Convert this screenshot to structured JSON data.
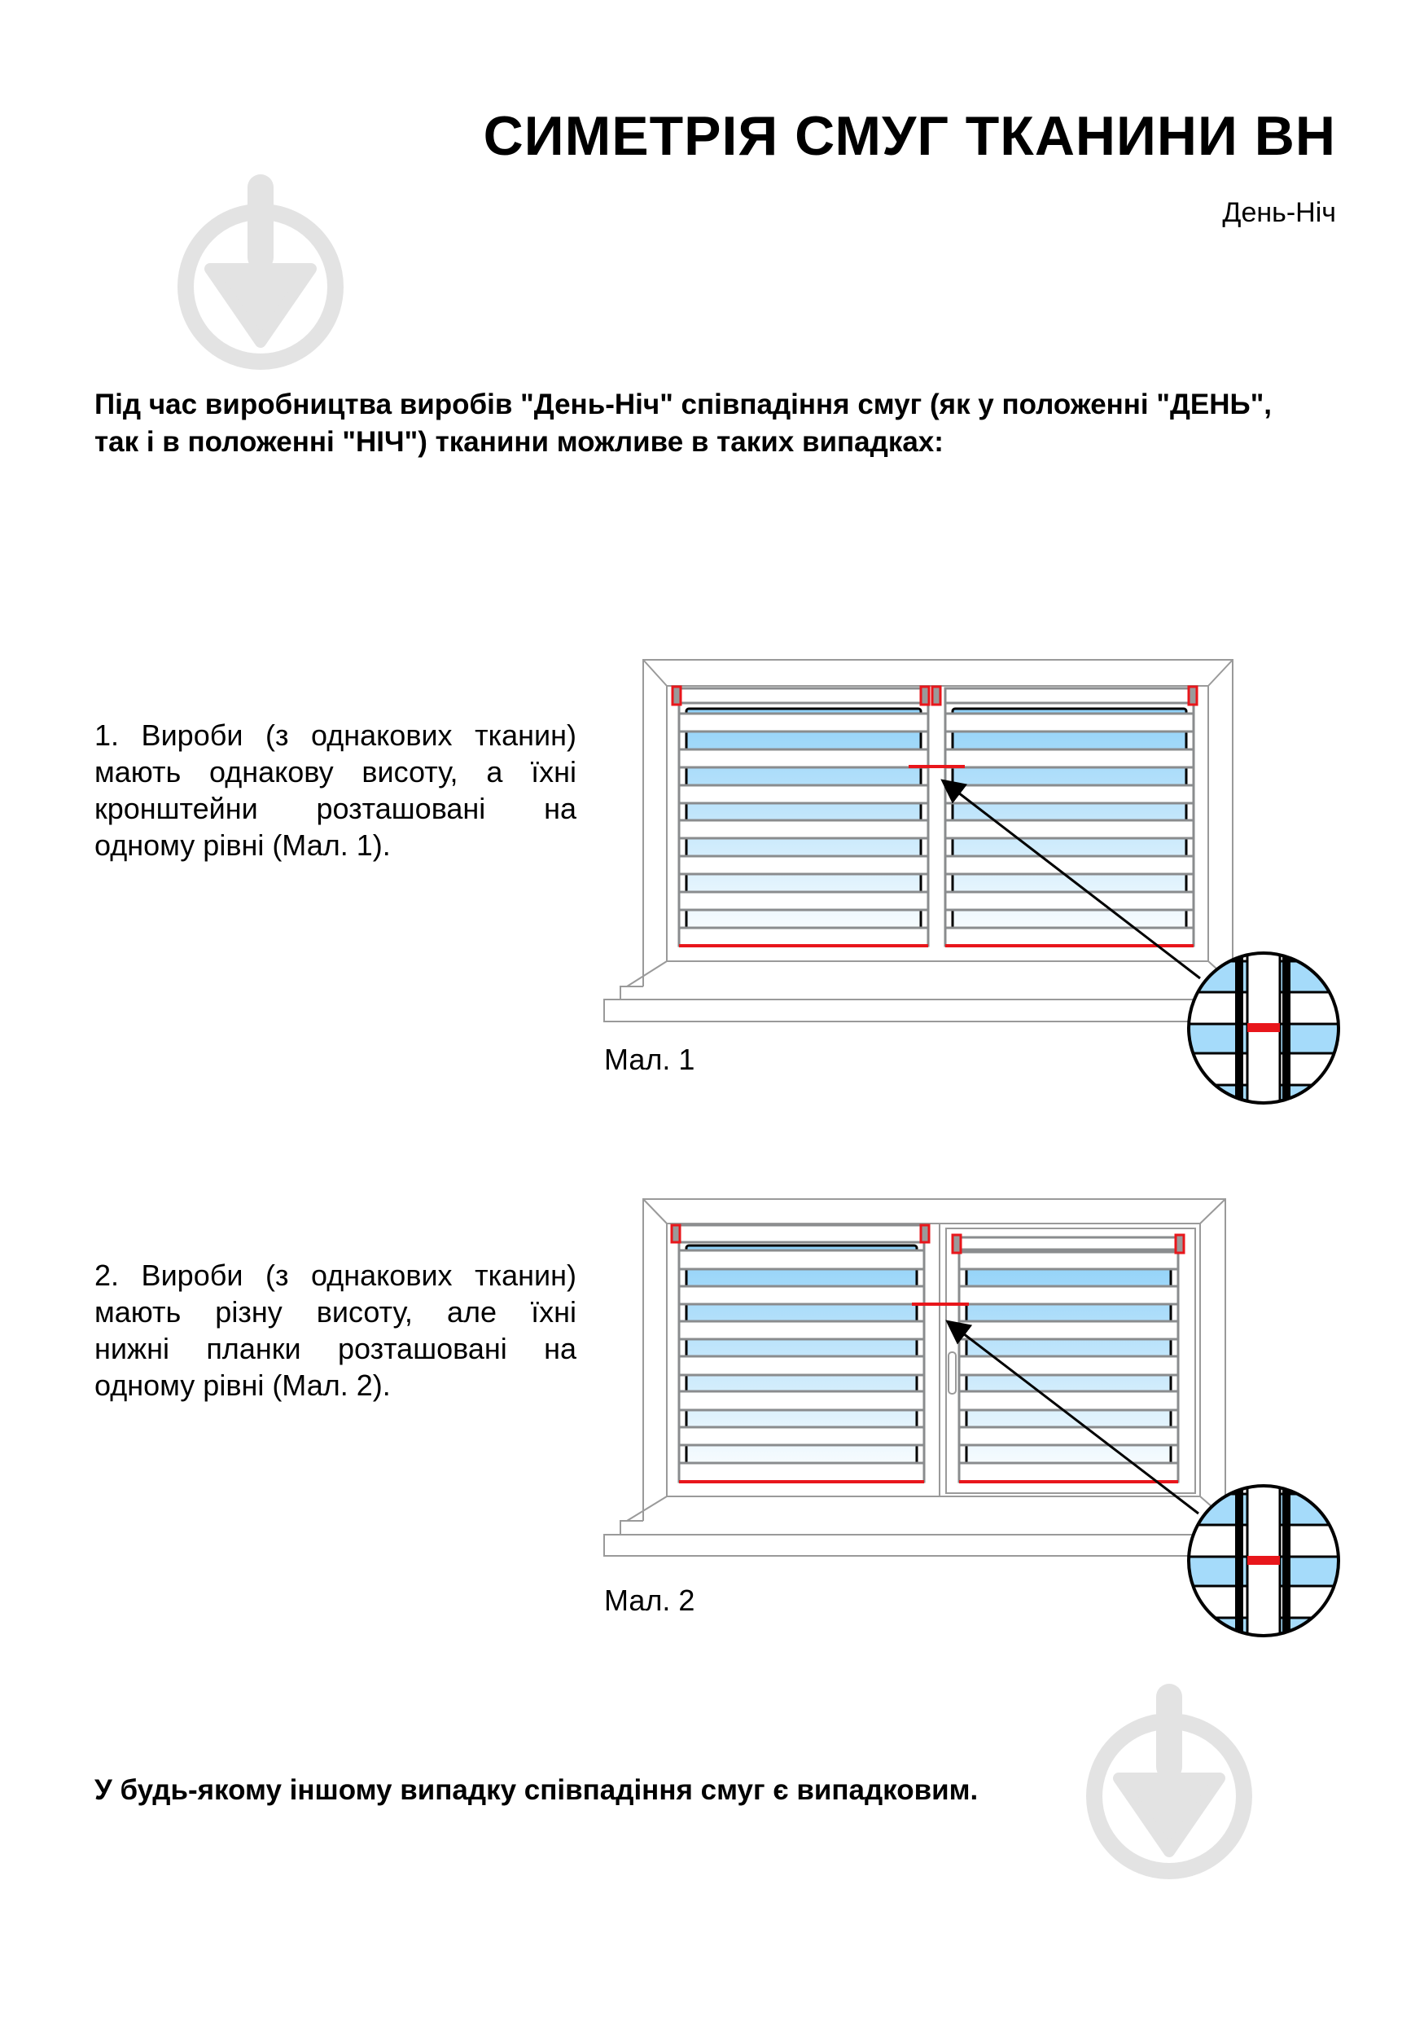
{
  "header": {
    "title": "СИМЕТРІЯ СМУГ ТКАНИНИ ВН",
    "subtitle": "День-Ніч"
  },
  "intro": {
    "lines": [
      "Під час виробництва виробів \"День-Ніч\" співпадіння смуг (як у положенні \"ДЕНЬ\",",
      "так і в положенні \"НІЧ\") тканини можливе в таких випадках:"
    ]
  },
  "cases": [
    {
      "lines": [
        "1. Вироби (з однакових тканин)",
        "мають однакову висоту, а їхні",
        "кронштейни розташовані на",
        "одному рівні (Мал. 1)."
      ],
      "caption": "Мал. 1"
    },
    {
      "lines": [
        "2. Вироби (з однакових тканин)",
        "мають різну висоту, але їхні",
        "нижні планки розташовані на",
        "одному рівні (Мал. 2)."
      ],
      "caption": "Мал. 2"
    }
  ],
  "outro": "У будь-якому іншому випадку співпадіння смуг є випадковим.",
  "icons": {
    "watermark": "download-pin-icon"
  },
  "colors": {
    "marker_red": "#e8161b",
    "frame_gray": "#9a9a9a",
    "stripe_gray": "#8a8c8e",
    "fabric_blue": "#93d3f8",
    "watermark_gray": "#e3e3e3"
  }
}
